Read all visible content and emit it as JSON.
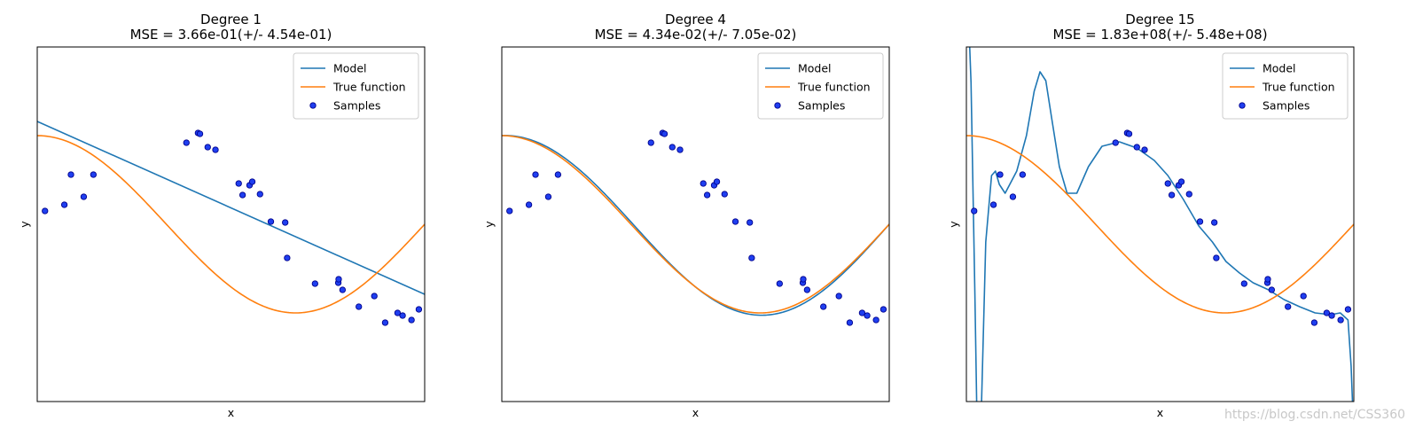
{
  "chart_data": [
    {
      "type": "line",
      "title": "Degree 1",
      "subtitle": "MSE = 3.66e-01(+/- 4.54e-01)",
      "xlabel": "x",
      "ylabel": "y",
      "xlim": [
        0,
        1
      ],
      "ylim": [
        -2,
        2
      ],
      "ticks": "none",
      "grid": false,
      "legend": {
        "position": "top-right",
        "entries": [
          "Model",
          "True function",
          "Samples"
        ]
      },
      "model_kind": "linear",
      "model_coeffs": [
        1.16,
        -1.95
      ]
    },
    {
      "type": "line",
      "title": "Degree 4",
      "subtitle": "MSE = 4.34e-02(+/- 7.05e-02)",
      "xlabel": "x",
      "ylabel": "y",
      "xlim": [
        0,
        1
      ],
      "ylim": [
        -2,
        2
      ],
      "ticks": "none",
      "grid": false,
      "legend": {
        "position": "top-right",
        "entries": [
          "Model",
          "True function",
          "Samples"
        ]
      },
      "model_kind": "smooth",
      "model_offset": 0.03
    },
    {
      "type": "line",
      "title": "Degree 15",
      "subtitle": "MSE = 1.83e+08(+/- 5.48e+08)",
      "xlabel": "x",
      "ylabel": "y",
      "xlim": [
        0,
        1
      ],
      "ylim": [
        -2,
        2
      ],
      "ticks": "none",
      "grid": false,
      "legend": {
        "position": "top-right",
        "entries": [
          "Model",
          "True function",
          "Samples"
        ]
      },
      "model_kind": "overfit",
      "model_points": [
        [
          0.0,
          3.0
        ],
        [
          0.012,
          1.6
        ],
        [
          0.022,
          -0.8
        ],
        [
          0.028,
          -2.4
        ],
        [
          0.038,
          -2.2
        ],
        [
          0.05,
          -0.2
        ],
        [
          0.065,
          0.55
        ],
        [
          0.075,
          0.6
        ],
        [
          0.085,
          0.45
        ],
        [
          0.1,
          0.35
        ],
        [
          0.13,
          0.6
        ],
        [
          0.155,
          1.0
        ],
        [
          0.175,
          1.5
        ],
        [
          0.19,
          1.72
        ],
        [
          0.205,
          1.62
        ],
        [
          0.22,
          1.2
        ],
        [
          0.24,
          0.65
        ],
        [
          0.26,
          0.35
        ],
        [
          0.285,
          0.35
        ],
        [
          0.315,
          0.65
        ],
        [
          0.35,
          0.88
        ],
        [
          0.395,
          0.93
        ],
        [
          0.44,
          0.86
        ],
        [
          0.485,
          0.72
        ],
        [
          0.52,
          0.55
        ],
        [
          0.56,
          0.28
        ],
        [
          0.6,
          -0.02
        ],
        [
          0.635,
          -0.2
        ],
        [
          0.67,
          -0.42
        ],
        [
          0.705,
          -0.55
        ],
        [
          0.74,
          -0.66
        ],
        [
          0.78,
          -0.74
        ],
        [
          0.82,
          -0.85
        ],
        [
          0.86,
          -0.93
        ],
        [
          0.9,
          -1.0
        ],
        [
          0.94,
          -1.02
        ],
        [
          0.965,
          -1.0
        ],
        [
          0.985,
          -1.08
        ],
        [
          0.993,
          -1.6
        ],
        [
          1.0,
          -2.4
        ]
      ]
    }
  ],
  "true_function": "cos(1.5*pi*x)",
  "samples": {
    "x": [
      0.02,
      0.07,
      0.087,
      0.12,
      0.145,
      0.385,
      0.415,
      0.42,
      0.44,
      0.46,
      0.52,
      0.53,
      0.548,
      0.555,
      0.575,
      0.603,
      0.64,
      0.645,
      0.717,
      0.777,
      0.778,
      0.788,
      0.83,
      0.87,
      0.898,
      0.93,
      0.943,
      0.966,
      0.985
    ],
    "y": [
      0.15,
      0.22,
      0.56,
      0.31,
      0.56,
      0.92,
      1.03,
      1.02,
      0.87,
      0.84,
      0.46,
      0.33,
      0.44,
      0.48,
      0.34,
      0.03,
      0.02,
      -0.38,
      -0.67,
      -0.66,
      -0.62,
      -0.74,
      -0.93,
      -0.81,
      -1.11,
      -1.0,
      -1.03,
      -1.08,
      -0.96
    ]
  },
  "watermark": "https://blog.csdn.net/CSS360",
  "colors": {
    "model": "#1f77b4",
    "true_function": "#ff7f0e",
    "sample_fill": "#1f3ff0",
    "sample_edge": "#00008b",
    "axes": "#000000",
    "legend_edge": "#cccccc"
  }
}
